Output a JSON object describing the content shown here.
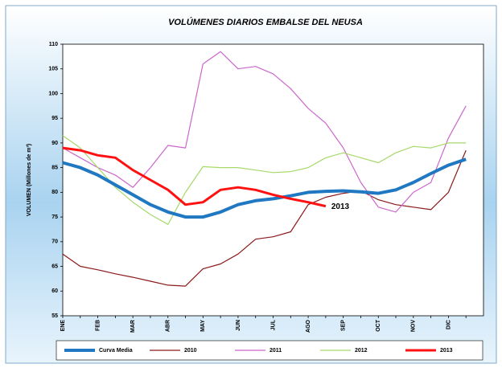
{
  "chart_data": {
    "type": "line",
    "title": "VOLÚMENES DIARIOS EMBALSE DEL NEUSA",
    "y_label": "VOLUMEN (Millones de m³)",
    "categories": [
      "ENE",
      null,
      "FEB",
      null,
      "MAR",
      null,
      "ABR",
      null,
      "MAY",
      null,
      "JUN",
      null,
      "JUL",
      null,
      "AGO",
      null,
      "SEP",
      null,
      "OCT",
      null,
      "NOV",
      null,
      "DIC",
      null
    ],
    "ylim": [
      55,
      110
    ],
    "yticks": [
      55,
      60,
      65,
      70,
      75,
      80,
      85,
      90,
      95,
      100,
      105,
      110
    ],
    "grid": false,
    "legend": "bottom",
    "annotation": "2013",
    "series": [
      {
        "name": "Curva Media",
        "color": "#1f78c1",
        "width": 4,
        "values": [
          86,
          85,
          83.5,
          81.5,
          79.5,
          77.5,
          76,
          75,
          75,
          76,
          77.5,
          78.3,
          78.7,
          79.3,
          80,
          80.2,
          80.3,
          80.1,
          79.8,
          80.5,
          82,
          83.8,
          85.5,
          86.7
        ]
      },
      {
        "name": "2010",
        "color": "#8b1a1a",
        "width": 1.2,
        "values": [
          67.5,
          65,
          64.3,
          63.5,
          62.8,
          62,
          61.2,
          61,
          64.5,
          65.5,
          67.5,
          70.5,
          71,
          72,
          77.5,
          79,
          79.8,
          80.3,
          78.5,
          77.5,
          77,
          76.5,
          80,
          88.5
        ]
      },
      {
        "name": "2011",
        "color": "#cc66cc",
        "width": 1.2,
        "values": [
          89,
          87,
          85,
          83.5,
          81,
          85,
          89.5,
          89,
          106,
          108.5,
          105,
          105.5,
          104,
          101,
          97,
          94,
          89,
          82,
          77,
          76,
          80,
          82,
          91,
          97.5
        ]
      },
      {
        "name": "2012",
        "color": "#a6d96a",
        "width": 1.2,
        "values": [
          91.5,
          89,
          85,
          81,
          78,
          75.5,
          73.5,
          80,
          85.2,
          85,
          85,
          84.5,
          84,
          84.2,
          85,
          87,
          88,
          87,
          86,
          88,
          89.3,
          89,
          90,
          90
        ]
      },
      {
        "name": "2013",
        "color": "#ff1111",
        "width": 3,
        "values": [
          89,
          88.5,
          87.5,
          87,
          84.5,
          82.5,
          80.5,
          77.5,
          78,
          80.5,
          81,
          80.5,
          79.5,
          78.7,
          78,
          77.2,
          null,
          null,
          null,
          null,
          null,
          null,
          null,
          null
        ]
      }
    ]
  }
}
